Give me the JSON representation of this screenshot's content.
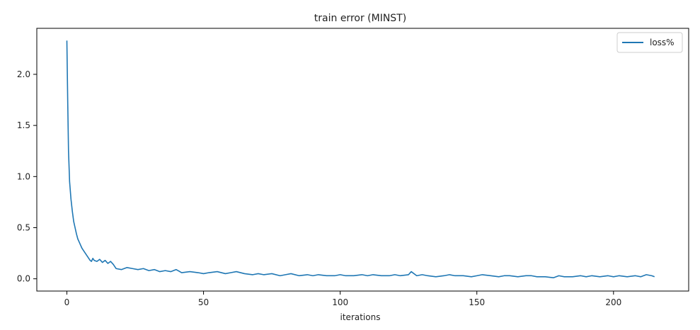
{
  "chart_data": {
    "type": "line",
    "title": "train error (MINST)",
    "xlabel": "iterations",
    "ylabel": "",
    "xlim": [
      -11,
      227.5
    ],
    "ylim": [
      -0.12,
      2.45
    ],
    "x_ticks": [
      0,
      50,
      100,
      150,
      200
    ],
    "x_tick_labels": [
      "0",
      "50",
      "100",
      "150",
      "200"
    ],
    "y_ticks": [
      0.0,
      0.5,
      1.0,
      1.5,
      2.0
    ],
    "y_tick_labels": [
      "0.0",
      "0.5",
      "1.0",
      "1.5",
      "2.0"
    ],
    "grid": false,
    "legend_position": "top-right",
    "series": [
      {
        "name": "loss%",
        "color": "#1f77b4",
        "x": [
          0,
          0.3,
          0.6,
          1,
          1.5,
          2,
          2.5,
          3,
          3.5,
          4,
          4.5,
          5,
          5.5,
          6,
          6.5,
          7,
          7.5,
          8,
          8.5,
          9,
          9.5,
          10,
          11,
          12,
          13,
          14,
          15,
          16,
          17,
          18,
          20,
          22,
          24,
          26,
          28,
          30,
          32,
          34,
          36,
          38,
          40,
          42,
          45,
          48,
          50,
          52,
          55,
          58,
          60,
          62,
          65,
          68,
          70,
          72,
          75,
          78,
          80,
          82,
          85,
          88,
          90,
          92,
          95,
          98,
          100,
          102,
          105,
          108,
          110,
          112,
          115,
          118,
          120,
          122,
          125,
          126,
          128,
          130,
          132,
          135,
          138,
          140,
          142,
          145,
          148,
          150,
          152,
          155,
          158,
          160,
          162,
          165,
          168,
          170,
          172,
          175,
          178,
          180,
          182,
          185,
          188,
          190,
          192,
          195,
          198,
          200,
          202,
          205,
          208,
          210,
          212,
          214,
          215
        ],
        "y": [
          2.33,
          1.75,
          1.25,
          0.95,
          0.78,
          0.66,
          0.56,
          0.5,
          0.44,
          0.39,
          0.36,
          0.33,
          0.3,
          0.28,
          0.26,
          0.24,
          0.22,
          0.2,
          0.18,
          0.17,
          0.2,
          0.18,
          0.17,
          0.19,
          0.16,
          0.18,
          0.15,
          0.17,
          0.14,
          0.1,
          0.09,
          0.11,
          0.1,
          0.09,
          0.1,
          0.08,
          0.09,
          0.07,
          0.08,
          0.07,
          0.09,
          0.06,
          0.07,
          0.06,
          0.05,
          0.06,
          0.07,
          0.05,
          0.06,
          0.07,
          0.05,
          0.04,
          0.05,
          0.04,
          0.05,
          0.03,
          0.04,
          0.05,
          0.03,
          0.04,
          0.03,
          0.04,
          0.03,
          0.03,
          0.04,
          0.03,
          0.03,
          0.04,
          0.03,
          0.04,
          0.03,
          0.03,
          0.04,
          0.03,
          0.04,
          0.07,
          0.03,
          0.04,
          0.03,
          0.02,
          0.03,
          0.04,
          0.03,
          0.03,
          0.02,
          0.03,
          0.04,
          0.03,
          0.02,
          0.03,
          0.03,
          0.02,
          0.03,
          0.03,
          0.02,
          0.02,
          0.01,
          0.03,
          0.02,
          0.02,
          0.03,
          0.02,
          0.03,
          0.02,
          0.03,
          0.02,
          0.03,
          0.02,
          0.03,
          0.02,
          0.04,
          0.03,
          0.02
        ]
      }
    ]
  }
}
